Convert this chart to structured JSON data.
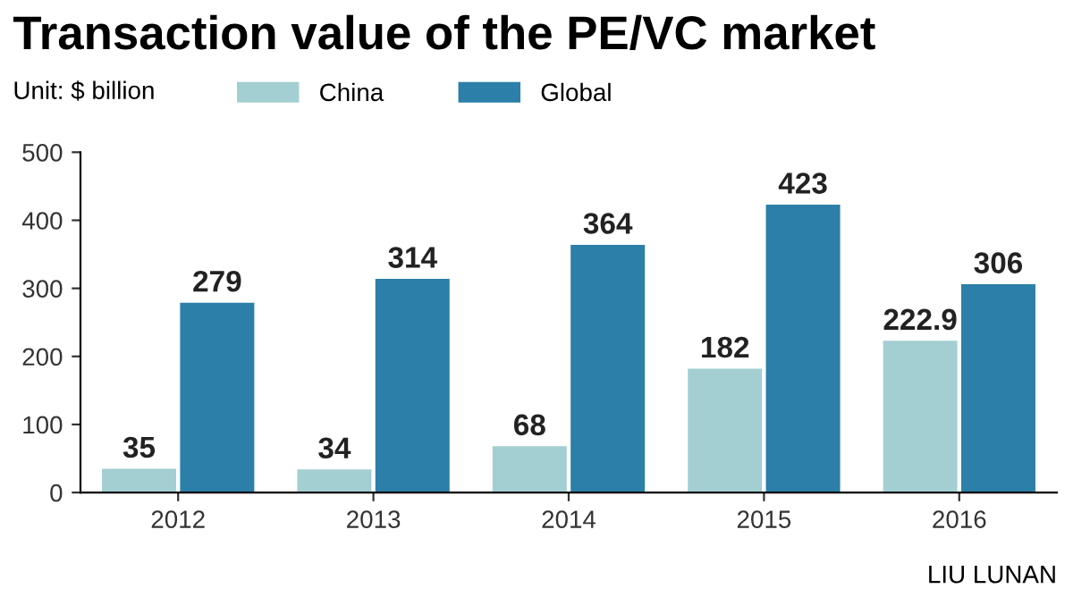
{
  "chart_data": {
    "type": "bar",
    "title": "Transaction value of the PE/VC market",
    "ylabel": "Unit: $ billion",
    "categories": [
      "2012",
      "2013",
      "2014",
      "2015",
      "2016"
    ],
    "series": [
      {
        "name": "China",
        "color": "#a3cfd3",
        "values": [
          35,
          34,
          68,
          182,
          222.9
        ]
      },
      {
        "name": "Global",
        "color": "#2b7fa8",
        "values": [
          279,
          314,
          364,
          423,
          306
        ]
      }
    ],
    "ylim": [
      0,
      500
    ],
    "yticks": [
      0,
      100,
      200,
      300,
      400,
      500
    ],
    "data_labels": true,
    "legend": "top",
    "grid": false,
    "annotations": [
      "LIU LUNAN"
    ]
  }
}
